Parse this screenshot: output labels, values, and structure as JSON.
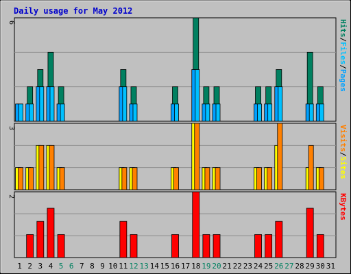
{
  "colors": {
    "background": "#c0c0c0",
    "plot_bg": "#c0c0c0",
    "border": "#000000",
    "gridline": "#909090",
    "title": "#0000cc",
    "hits": "#008060",
    "files": "#00c0ff",
    "pages": "#00a0ff",
    "sites": "#ffff00",
    "visits": "#ff8000",
    "kbytes": "#ff0000",
    "weekend_day": "#008060",
    "weekday": "#000000"
  },
  "chart_data": [
    {
      "type": "bar",
      "title": "Daily usage for May 2012",
      "panel": "hits_files_pages",
      "ylabel_parts": [
        "Pages",
        "/",
        "Files",
        "/",
        "Hits"
      ],
      "ymax_label": "6",
      "ylim": [
        0,
        6
      ],
      "categories": [
        "1",
        "2",
        "3",
        "4",
        "5",
        "6",
        "7",
        "8",
        "9",
        "10",
        "11",
        "12",
        "13",
        "14",
        "15",
        "16",
        "17",
        "18",
        "19",
        "20",
        "21",
        "22",
        "23",
        "24",
        "25",
        "26",
        "27",
        "28",
        "29",
        "30",
        "31"
      ],
      "series": [
        {
          "name": "Hits",
          "values": [
            1,
            2,
            3,
            4,
            2,
            0,
            0,
            0,
            0,
            0,
            3,
            2,
            0,
            0,
            0,
            2,
            0,
            6,
            2,
            2,
            0,
            0,
            0,
            2,
            2,
            3,
            0,
            0,
            4,
            2,
            0
          ]
        },
        {
          "name": "Files",
          "values": [
            1,
            1,
            2,
            2,
            1,
            0,
            0,
            0,
            0,
            0,
            2,
            1,
            0,
            0,
            0,
            1,
            0,
            3,
            1,
            1,
            0,
            0,
            0,
            1,
            1,
            2,
            0,
            0,
            1,
            1,
            0
          ]
        },
        {
          "name": "Pages",
          "values": [
            1,
            1,
            2,
            2,
            1,
            0,
            0,
            0,
            0,
            0,
            2,
            1,
            0,
            0,
            0,
            1,
            0,
            3,
            1,
            1,
            0,
            0,
            0,
            1,
            1,
            2,
            0,
            0,
            1,
            1,
            0
          ]
        }
      ]
    },
    {
      "type": "bar",
      "panel": "sites_visits",
      "ylabel_parts": [
        "Sites",
        "/",
        "Visits"
      ],
      "ymax_label": "3",
      "ylim": [
        0,
        3
      ],
      "categories": [
        "1",
        "2",
        "3",
        "4",
        "5",
        "6",
        "7",
        "8",
        "9",
        "10",
        "11",
        "12",
        "13",
        "14",
        "15",
        "16",
        "17",
        "18",
        "19",
        "20",
        "21",
        "22",
        "23",
        "24",
        "25",
        "26",
        "27",
        "28",
        "29",
        "30",
        "31"
      ],
      "series": [
        {
          "name": "Sites",
          "values": [
            1,
            1,
            2,
            2,
            1,
            0,
            0,
            0,
            0,
            0,
            1,
            1,
            0,
            0,
            0,
            1,
            0,
            3,
            1,
            1,
            0,
            0,
            0,
            1,
            1,
            2,
            0,
            0,
            1,
            1,
            0
          ]
        },
        {
          "name": "Visits",
          "values": [
            1,
            1,
            2,
            2,
            1,
            0,
            0,
            0,
            0,
            0,
            1,
            1,
            0,
            0,
            0,
            1,
            0,
            3,
            1,
            1,
            0,
            0,
            0,
            1,
            1,
            3,
            0,
            0,
            2,
            1,
            0
          ]
        }
      ]
    },
    {
      "type": "bar",
      "panel": "kbytes",
      "ylabel_parts": [
        "KBytes"
      ],
      "ymax_label": "2",
      "ylim": [
        0,
        2
      ],
      "categories": [
        "1",
        "2",
        "3",
        "4",
        "5",
        "6",
        "7",
        "8",
        "9",
        "10",
        "11",
        "12",
        "13",
        "14",
        "15",
        "16",
        "17",
        "18",
        "19",
        "20",
        "21",
        "22",
        "23",
        "24",
        "25",
        "26",
        "27",
        "28",
        "29",
        "30",
        "31"
      ],
      "series": [
        {
          "name": "KBytes",
          "values": [
            0,
            0.7,
            1.1,
            1.5,
            0.7,
            0,
            0,
            0,
            0,
            0,
            1.1,
            0.7,
            0,
            0,
            0,
            0.7,
            0,
            2,
            0.7,
            0.7,
            0,
            0,
            0,
            0.7,
            0.7,
            1.1,
            0,
            0,
            1.5,
            0.7,
            0
          ]
        }
      ]
    }
  ],
  "weekend_days": [
    5,
    6,
    12,
    13,
    19,
    20,
    26,
    27
  ]
}
